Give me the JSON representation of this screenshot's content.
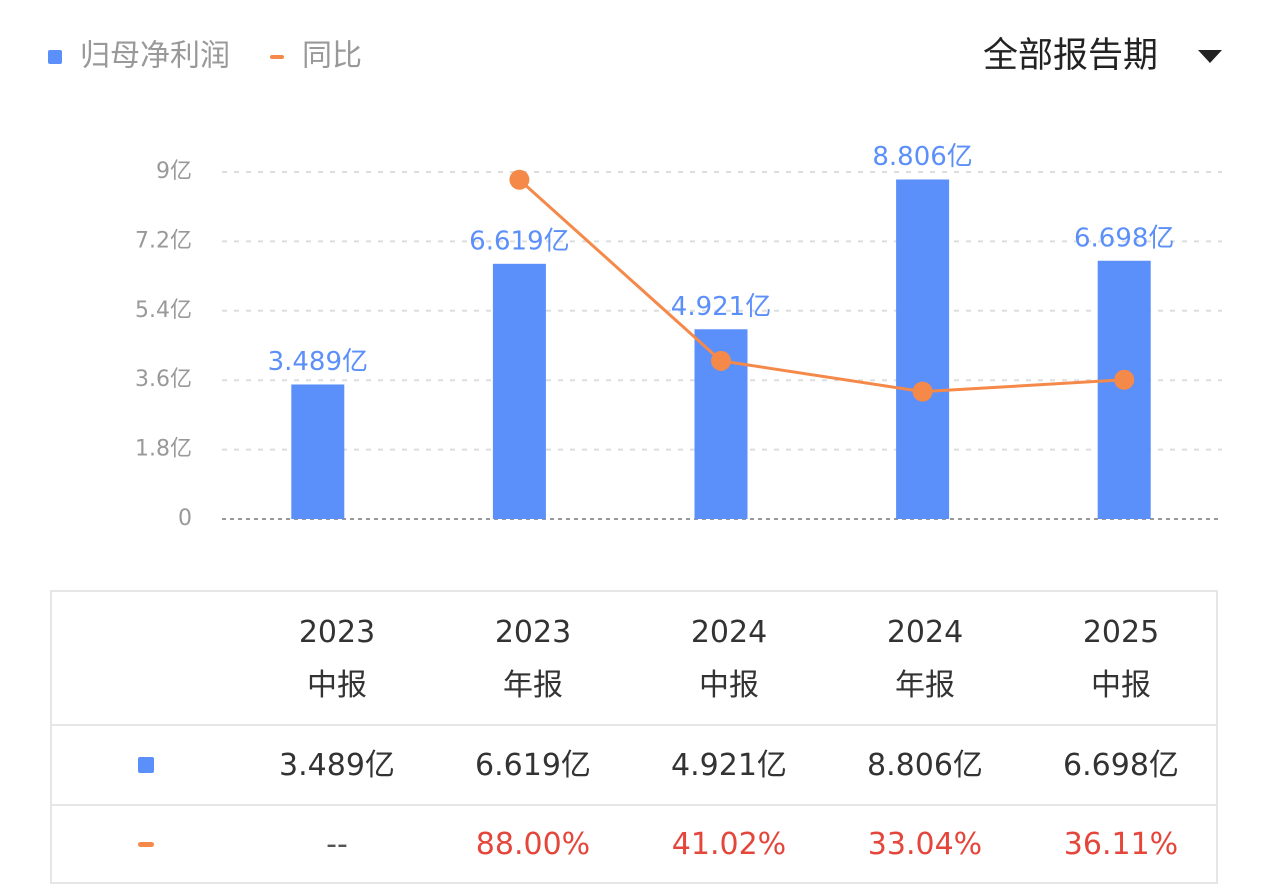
{
  "chart_data": {
    "type": "bar",
    "categories": [
      "2023\n中报",
      "2023\n年报",
      "2024\n中报",
      "2024\n年报",
      "2025\n中报"
    ],
    "series": [
      {
        "name": "归母净利润",
        "type": "bar",
        "color": "#5b8ff9",
        "values": [
          3.489,
          6.619,
          4.921,
          8.806,
          6.698
        ],
        "value_labels": [
          "3.489亿",
          "6.619亿",
          "4.921亿",
          "8.806亿",
          "6.698亿"
        ]
      },
      {
        "name": "同比",
        "type": "line",
        "color": "#f5894a",
        "axis": "y2",
        "values": [
          null,
          88.0,
          41.02,
          33.04,
          36.11
        ],
        "value_labels": [
          "--",
          "88.00%",
          "41.02%",
          "33.04%",
          "36.11%"
        ]
      }
    ],
    "ylim": [
      0,
      9
    ],
    "yticks": [
      0,
      {
        "value": 1.8,
        "label": "1.8亿"
      },
      {
        "value": 3.6,
        "label": "3.6亿"
      },
      {
        "value": 5.4,
        "label": "5.4亿"
      },
      {
        "value": 7.2,
        "label": "7.2亿"
      },
      {
        "value": 9,
        "label": "9亿"
      }
    ],
    "y2lim": [
      0,
      90
    ],
    "grid": true
  },
  "period_selector": "全部报告期"
}
